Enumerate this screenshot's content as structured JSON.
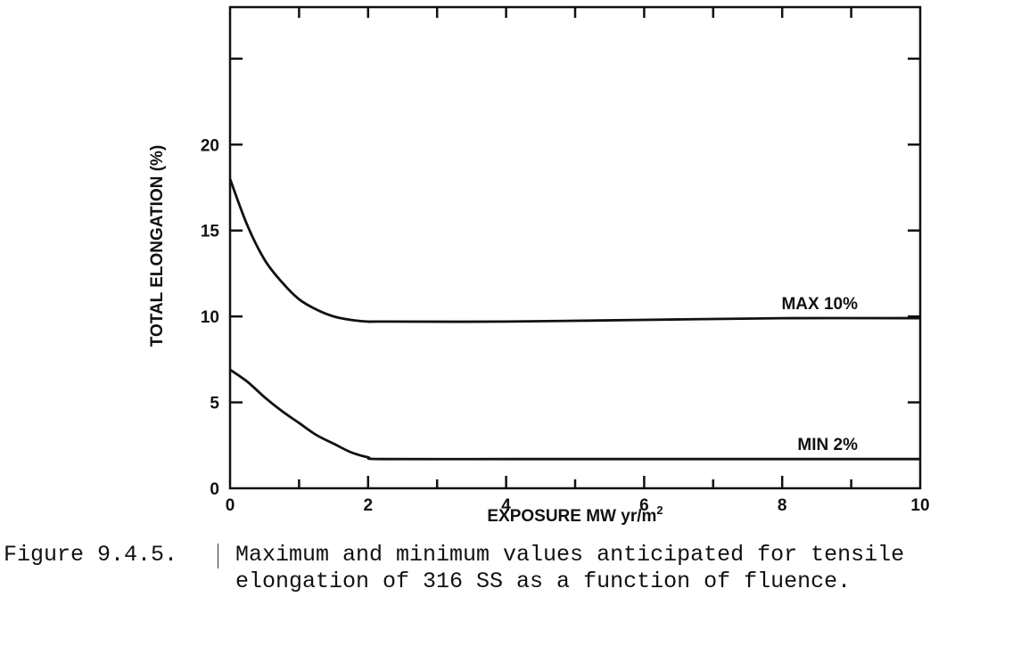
{
  "chart_data": {
    "type": "line",
    "title": "",
    "xlabel": "EXPOSURE MW yr/m",
    "xlabel_superscript": "2",
    "ylabel": "TOTAL ELONGATION (%)",
    "xlim": [
      0,
      10
    ],
    "ylim": [
      0,
      28
    ],
    "x_ticks": [
      "0",
      "2",
      "4",
      "6",
      "8",
      "10"
    ],
    "y_ticks": [
      "0",
      "5",
      "10",
      "15",
      "20"
    ],
    "grid": false,
    "series": [
      {
        "name": "MAX 10%",
        "x": [
          0,
          0.25,
          0.5,
          0.75,
          1.0,
          1.25,
          1.5,
          1.75,
          2.0,
          2.2,
          4,
          6,
          8,
          10
        ],
        "y": [
          18.0,
          15.3,
          13.3,
          12.0,
          11.0,
          10.4,
          10.0,
          9.8,
          9.7,
          9.7,
          9.7,
          9.8,
          9.9,
          9.9
        ]
      },
      {
        "name": "MIN 2%",
        "x": [
          0,
          0.25,
          0.5,
          0.75,
          1.0,
          1.25,
          1.5,
          1.75,
          2.0,
          2.2,
          4,
          6,
          8,
          10
        ],
        "y": [
          6.9,
          6.2,
          5.3,
          4.5,
          3.8,
          3.1,
          2.6,
          2.1,
          1.8,
          1.7,
          1.7,
          1.7,
          1.7,
          1.7
        ]
      }
    ]
  },
  "caption": {
    "label": "Figure 9.4.5.",
    "line1": "Maximum and minimum values anticipated for tensile",
    "line2": "elongation of 316 SS as a function of fluence."
  }
}
